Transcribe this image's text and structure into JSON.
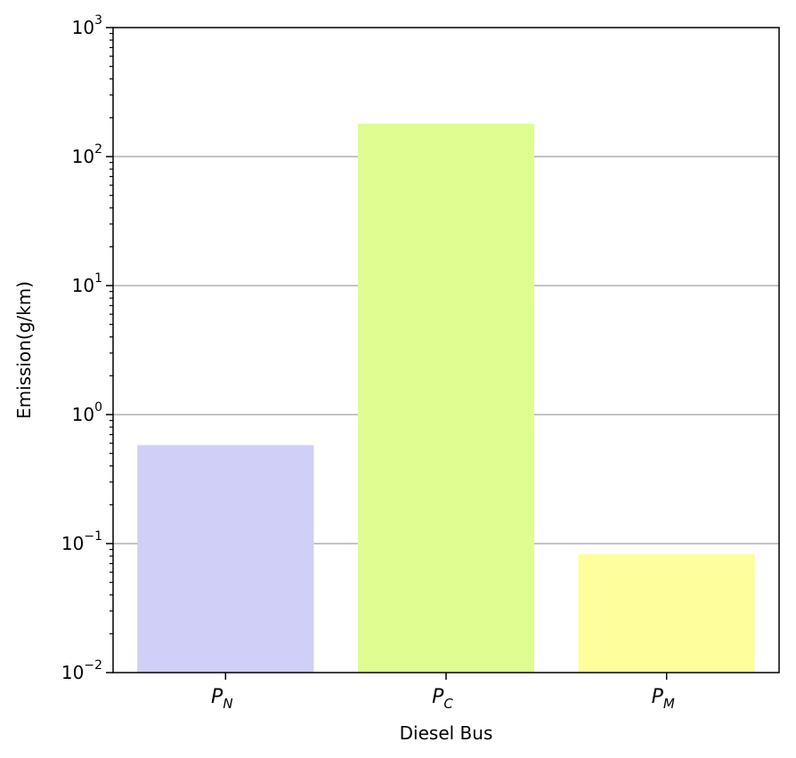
{
  "chart_data": {
    "type": "bar",
    "categories": [
      {
        "main": "P",
        "sub": "N"
      },
      {
        "main": "P",
        "sub": "C"
      },
      {
        "main": "P",
        "sub": "M"
      }
    ],
    "values": [
      0.58,
      180,
      0.083
    ],
    "colors": [
      "#cfcff7",
      "#dffd90",
      "#fefe9c"
    ],
    "xlabel": "Diesel Bus",
    "ylabel": "Emission(g/km)",
    "yscale": "log",
    "ylim": [
      0.01,
      1000
    ],
    "y_ticks": [
      {
        "value": 0.01,
        "base": "10",
        "exp": "−2"
      },
      {
        "value": 0.1,
        "base": "10",
        "exp": "−1"
      },
      {
        "value": 1,
        "base": "10",
        "exp": "0"
      },
      {
        "value": 10,
        "base": "10",
        "exp": "1"
      },
      {
        "value": 100,
        "base": "10",
        "exp": "2"
      },
      {
        "value": 1000,
        "base": "10",
        "exp": "3"
      }
    ],
    "grid": "horizontal",
    "grid_color": "#b0b0b0"
  }
}
